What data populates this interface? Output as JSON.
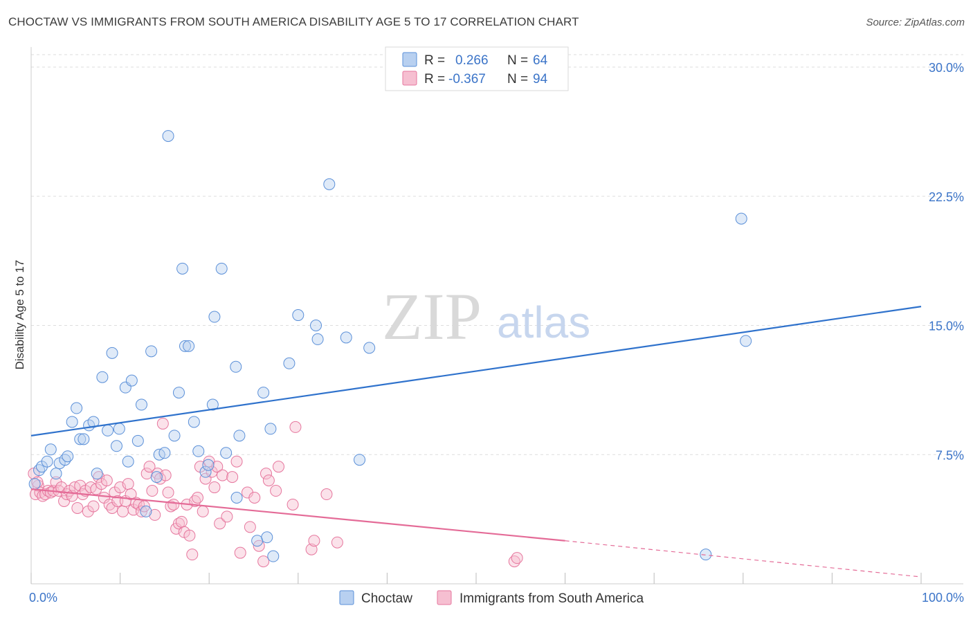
{
  "title": "CHOCTAW VS IMMIGRANTS FROM SOUTH AMERICA DISABILITY AGE 5 TO 17 CORRELATION CHART",
  "source": "Source: ZipAtlas.com",
  "watermark": {
    "zip": "ZIP",
    "atlas": "atlas"
  },
  "colors": {
    "blue": "#5a8fd8",
    "blue_fill": "#b8d0f0",
    "blue_line": "#2f72cc",
    "pink": "#e6769d",
    "pink_fill": "#f6bfd1",
    "pink_line": "#e46b97",
    "axis_text": "#3b74c8"
  },
  "legend": {
    "rows": [
      {
        "r_label": "R =",
        "r_value": "0.266",
        "n_label": "N =",
        "n_value": "64"
      },
      {
        "r_label": "R =",
        "r_value": "-0.367",
        "n_label": "N =",
        "n_value": "94"
      }
    ]
  },
  "bottom_legend": [
    "Choctaw",
    "Immigrants from South America"
  ],
  "chart_data": {
    "type": "scatter",
    "title": "CHOCTAW VS IMMIGRANTS FROM SOUTH AMERICA DISABILITY AGE 5 TO 17 CORRELATION CHART",
    "xlabel": "",
    "ylabel": "Disability Age 5 to 17",
    "xlim": [
      0,
      100
    ],
    "ylim": [
      0,
      30
    ],
    "x_tick_labels": [
      "0.0%",
      "100.0%"
    ],
    "y_ticks": [
      7.5,
      15.0,
      22.5,
      30.0
    ],
    "y_tick_labels": [
      "7.5%",
      "15.0%",
      "22.5%",
      "30.0%"
    ],
    "grid": "horizontal dashed",
    "legend_position": "top-center",
    "series": [
      {
        "name": "Choctaw",
        "trend": {
          "x": [
            0,
            100
          ],
          "y": [
            8.6,
            16.1
          ]
        },
        "points": [
          [
            0.4,
            5.8
          ],
          [
            0.9,
            6.6
          ],
          [
            1.2,
            6.8
          ],
          [
            1.8,
            7.1
          ],
          [
            2.2,
            7.8
          ],
          [
            2.8,
            6.4
          ],
          [
            3.2,
            7.0
          ],
          [
            3.8,
            7.2
          ],
          [
            4.1,
            7.4
          ],
          [
            4.6,
            9.4
          ],
          [
            5.1,
            10.2
          ],
          [
            5.5,
            8.4
          ],
          [
            5.9,
            8.4
          ],
          [
            6.5,
            9.2
          ],
          [
            7.0,
            9.4
          ],
          [
            7.4,
            6.4
          ],
          [
            8.0,
            12.0
          ],
          [
            8.6,
            8.9
          ],
          [
            9.1,
            13.4
          ],
          [
            9.6,
            8.0
          ],
          [
            9.9,
            9.0
          ],
          [
            10.6,
            11.4
          ],
          [
            10.9,
            7.1
          ],
          [
            11.3,
            11.8
          ],
          [
            12.0,
            8.3
          ],
          [
            12.4,
            10.4
          ],
          [
            12.9,
            4.2
          ],
          [
            13.5,
            13.5
          ],
          [
            14.1,
            6.2
          ],
          [
            14.4,
            7.5
          ],
          [
            15.0,
            7.6
          ],
          [
            15.4,
            26.0
          ],
          [
            16.1,
            8.6
          ],
          [
            16.6,
            11.1
          ],
          [
            17.0,
            18.3
          ],
          [
            17.3,
            13.8
          ],
          [
            17.7,
            13.8
          ],
          [
            18.3,
            9.4
          ],
          [
            18.8,
            7.7
          ],
          [
            19.6,
            6.5
          ],
          [
            19.9,
            6.9
          ],
          [
            20.4,
            10.4
          ],
          [
            20.6,
            15.5
          ],
          [
            21.4,
            18.3
          ],
          [
            21.9,
            7.6
          ],
          [
            23.0,
            12.6
          ],
          [
            23.4,
            8.6
          ],
          [
            23.1,
            5.0
          ],
          [
            25.4,
            2.5
          ],
          [
            26.1,
            11.1
          ],
          [
            26.5,
            2.7
          ],
          [
            26.9,
            9.0
          ],
          [
            27.2,
            1.6
          ],
          [
            29.0,
            12.8
          ],
          [
            30.0,
            15.6
          ],
          [
            32.0,
            15.0
          ],
          [
            32.2,
            14.2
          ],
          [
            33.5,
            23.2
          ],
          [
            35.4,
            14.3
          ],
          [
            36.9,
            7.2
          ],
          [
            38.0,
            13.7
          ],
          [
            75.8,
            1.7
          ],
          [
            79.8,
            21.2
          ],
          [
            80.3,
            14.1
          ]
        ]
      },
      {
        "name": "Immigrants from South America",
        "trend": {
          "x": [
            0,
            60
          ],
          "y": [
            5.5,
            2.5
          ]
        },
        "trend_dashed": {
          "x": [
            60,
            100
          ],
          "y": [
            2.5,
            0.4
          ]
        },
        "points": [
          [
            0.3,
            6.4
          ],
          [
            0.5,
            5.2
          ],
          [
            0.8,
            5.7
          ],
          [
            1.0,
            5.3
          ],
          [
            1.3,
            5.1
          ],
          [
            1.6,
            5.2
          ],
          [
            1.9,
            5.4
          ],
          [
            2.2,
            5.3
          ],
          [
            2.5,
            5.4
          ],
          [
            2.8,
            5.9
          ],
          [
            3.1,
            5.4
          ],
          [
            3.4,
            5.6
          ],
          [
            3.7,
            4.8
          ],
          [
            4.0,
            5.2
          ],
          [
            4.3,
            5.4
          ],
          [
            4.6,
            5.1
          ],
          [
            4.9,
            5.6
          ],
          [
            5.2,
            4.4
          ],
          [
            5.5,
            5.7
          ],
          [
            5.8,
            5.2
          ],
          [
            6.1,
            5.4
          ],
          [
            6.4,
            4.2
          ],
          [
            6.7,
            5.6
          ],
          [
            7.0,
            4.5
          ],
          [
            7.3,
            5.5
          ],
          [
            7.6,
            6.2
          ],
          [
            7.9,
            5.8
          ],
          [
            8.2,
            5.0
          ],
          [
            8.5,
            6.0
          ],
          [
            8.8,
            4.6
          ],
          [
            9.1,
            4.4
          ],
          [
            9.4,
            5.3
          ],
          [
            9.7,
            4.8
          ],
          [
            10.0,
            5.6
          ],
          [
            10.3,
            4.2
          ],
          [
            10.6,
            4.8
          ],
          [
            10.9,
            5.8
          ],
          [
            11.2,
            5.2
          ],
          [
            11.5,
            4.3
          ],
          [
            11.8,
            4.7
          ],
          [
            12.1,
            4.6
          ],
          [
            12.4,
            4.2
          ],
          [
            12.7,
            4.5
          ],
          [
            13.0,
            6.4
          ],
          [
            13.3,
            6.8
          ],
          [
            13.6,
            5.4
          ],
          [
            13.9,
            4.0
          ],
          [
            14.2,
            6.4
          ],
          [
            14.5,
            6.1
          ],
          [
            14.8,
            9.3
          ],
          [
            15.1,
            6.3
          ],
          [
            15.4,
            5.3
          ],
          [
            15.7,
            4.5
          ],
          [
            16.0,
            4.6
          ],
          [
            16.3,
            3.2
          ],
          [
            16.6,
            3.5
          ],
          [
            16.9,
            3.6
          ],
          [
            17.2,
            3.0
          ],
          [
            17.5,
            4.6
          ],
          [
            17.8,
            2.8
          ],
          [
            18.1,
            1.7
          ],
          [
            18.4,
            4.8
          ],
          [
            18.7,
            5.0
          ],
          [
            19.0,
            6.8
          ],
          [
            19.3,
            4.2
          ],
          [
            19.6,
            6.1
          ],
          [
            20.0,
            7.1
          ],
          [
            20.3,
            6.5
          ],
          [
            20.6,
            5.6
          ],
          [
            20.9,
            6.8
          ],
          [
            21.2,
            3.5
          ],
          [
            21.5,
            6.3
          ],
          [
            22.0,
            3.9
          ],
          [
            22.6,
            6.2
          ],
          [
            23.1,
            7.1
          ],
          [
            23.5,
            1.8
          ],
          [
            24.3,
            5.3
          ],
          [
            24.6,
            3.3
          ],
          [
            25.1,
            5.0
          ],
          [
            25.6,
            2.2
          ],
          [
            26.1,
            1.3
          ],
          [
            26.4,
            6.4
          ],
          [
            26.7,
            6.0
          ],
          [
            27.5,
            5.4
          ],
          [
            27.8,
            6.8
          ],
          [
            29.4,
            4.6
          ],
          [
            29.7,
            9.1
          ],
          [
            31.5,
            2.0
          ],
          [
            31.8,
            2.5
          ],
          [
            33.2,
            5.2
          ],
          [
            34.4,
            2.4
          ],
          [
            54.3,
            1.3
          ],
          [
            54.6,
            1.5
          ],
          [
            0.7,
            5.9
          ]
        ]
      }
    ]
  }
}
